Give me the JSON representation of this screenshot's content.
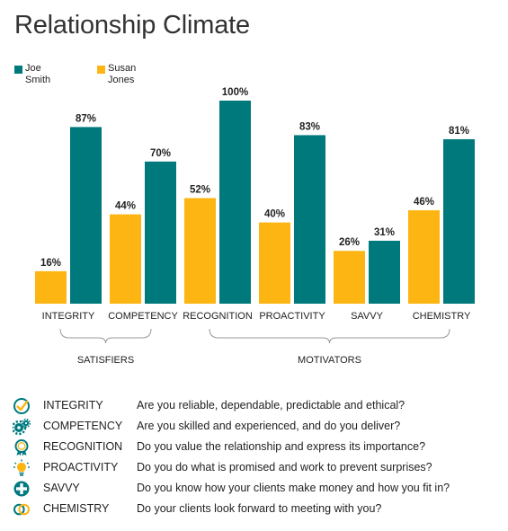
{
  "title": "Relationship Climate",
  "colors": {
    "joe": "#00797c",
    "susan": "#fcb512",
    "bracket": "#999999",
    "icon": "#007a80",
    "icon_accent": "#fcb512"
  },
  "legend": {
    "joe": {
      "line1": "Joe",
      "line2": "Smith"
    },
    "susan": {
      "line1": "Susan",
      "line2": "Jones"
    }
  },
  "chart_data": {
    "type": "bar",
    "categories": [
      "INTEGRITY",
      "COMPETENCY",
      "RECOGNITION",
      "PROACTIVITY",
      "SAVVY",
      "CHEMISTRY"
    ],
    "series": [
      {
        "name": "Susan Jones",
        "values": [
          16,
          44,
          52,
          40,
          26,
          46
        ]
      },
      {
        "name": "Joe Smith",
        "values": [
          87,
          70,
          100,
          83,
          31,
          81
        ]
      }
    ],
    "value_suffix": "%",
    "ylim": [
      0,
      100
    ],
    "grid": false,
    "legend_position": "top-left",
    "groups": [
      {
        "label": "SATISFIERS",
        "categories": [
          "INTEGRITY",
          "COMPETENCY"
        ]
      },
      {
        "label": "MOTIVATORS",
        "categories": [
          "RECOGNITION",
          "PROACTIVITY",
          "SAVVY",
          "CHEMISTRY"
        ]
      }
    ]
  },
  "definitions": [
    {
      "icon": "check-circle-icon",
      "term": "INTEGRITY",
      "question": "Are you reliable, dependable, predictable and ethical?"
    },
    {
      "icon": "gears-icon",
      "term": "COMPETENCY",
      "question": "Are you skilled and experienced, and do you deliver?"
    },
    {
      "icon": "ribbon-icon",
      "term": "RECOGNITION",
      "question": "Do you value the relationship and express its importance?"
    },
    {
      "icon": "lightbulb-icon",
      "term": "PROACTIVITY",
      "question": "Do you do what is promised and work to prevent surprises?"
    },
    {
      "icon": "plus-circle-icon",
      "term": "SAVVY",
      "question": "Do you know how your clients make money and how you fit in?"
    },
    {
      "icon": "linked-rings-icon",
      "term": "CHEMISTRY",
      "question": "Do your clients look forward to meeting with you?"
    }
  ]
}
